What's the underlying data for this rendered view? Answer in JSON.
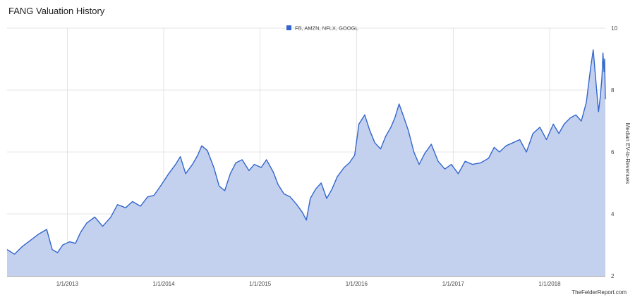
{
  "chart_data": {
    "type": "area",
    "title": "FANG Valuation History",
    "ylabel": "Median EV-to-Revenues",
    "xlabel": "",
    "ylim": [
      2,
      10
    ],
    "yticks": [
      "2",
      "4",
      "6",
      "8",
      "10"
    ],
    "xticks": [
      "1/1/2013",
      "1/1/2014",
      "1/1/2015",
      "1/1/2016",
      "1/1/2017",
      "1/1/2018"
    ],
    "x_axis": "dates",
    "x_range": [
      "2012-05-18",
      "2018-07-31"
    ],
    "grid": true,
    "legend_position": "top-center",
    "series": [
      {
        "name": "FB, AMZN, NFLX, GOOGL",
        "color": "#3366cc",
        "fill": "#c3d1ef",
        "points": [
          [
            "2012-05-18",
            2.85
          ],
          [
            "2012-06-15",
            2.7
          ],
          [
            "2012-07-15",
            2.95
          ],
          [
            "2012-08-15",
            3.15
          ],
          [
            "2012-09-15",
            3.35
          ],
          [
            "2012-10-15",
            3.5
          ],
          [
            "2012-11-05",
            2.85
          ],
          [
            "2012-11-25",
            2.75
          ],
          [
            "2012-12-15",
            3.0
          ],
          [
            "2013-01-10",
            3.1
          ],
          [
            "2013-02-01",
            3.05
          ],
          [
            "2013-02-20",
            3.4
          ],
          [
            "2013-03-15",
            3.7
          ],
          [
            "2013-04-15",
            3.9
          ],
          [
            "2013-05-15",
            3.6
          ],
          [
            "2013-06-15",
            3.9
          ],
          [
            "2013-07-10",
            4.3
          ],
          [
            "2013-08-10",
            4.2
          ],
          [
            "2013-09-05",
            4.4
          ],
          [
            "2013-10-05",
            4.25
          ],
          [
            "2013-11-01",
            4.55
          ],
          [
            "2013-11-25",
            4.6
          ],
          [
            "2013-12-20",
            4.9
          ],
          [
            "2014-01-20",
            5.3
          ],
          [
            "2014-02-15",
            5.6
          ],
          [
            "2014-03-05",
            5.85
          ],
          [
            "2014-03-25",
            5.3
          ],
          [
            "2014-04-20",
            5.6
          ],
          [
            "2014-05-10",
            5.9
          ],
          [
            "2014-05-25",
            6.2
          ],
          [
            "2014-06-15",
            6.05
          ],
          [
            "2014-07-10",
            5.5
          ],
          [
            "2014-07-30",
            4.9
          ],
          [
            "2014-08-20",
            4.75
          ],
          [
            "2014-09-10",
            5.3
          ],
          [
            "2014-10-01",
            5.65
          ],
          [
            "2014-10-25",
            5.75
          ],
          [
            "2014-11-20",
            5.4
          ],
          [
            "2014-12-10",
            5.6
          ],
          [
            "2015-01-05",
            5.5
          ],
          [
            "2015-01-25",
            5.75
          ],
          [
            "2015-02-20",
            5.35
          ],
          [
            "2015-03-10",
            4.95
          ],
          [
            "2015-04-01",
            4.65
          ],
          [
            "2015-04-25",
            4.55
          ],
          [
            "2015-05-20",
            4.3
          ],
          [
            "2015-06-10",
            4.05
          ],
          [
            "2015-06-25",
            3.8
          ],
          [
            "2015-07-10",
            4.5
          ],
          [
            "2015-07-30",
            4.8
          ],
          [
            "2015-08-20",
            5.0
          ],
          [
            "2015-09-10",
            4.5
          ],
          [
            "2015-09-30",
            4.8
          ],
          [
            "2015-10-20",
            5.2
          ],
          [
            "2015-11-15",
            5.5
          ],
          [
            "2015-12-05",
            5.65
          ],
          [
            "2015-12-25",
            5.9
          ],
          [
            "2016-01-10",
            6.9
          ],
          [
            "2016-02-01",
            7.2
          ],
          [
            "2016-02-20",
            6.7
          ],
          [
            "2016-03-10",
            6.3
          ],
          [
            "2016-04-01",
            6.1
          ],
          [
            "2016-04-20",
            6.5
          ],
          [
            "2016-05-10",
            6.8
          ],
          [
            "2016-05-25",
            7.1
          ],
          [
            "2016-06-10",
            7.55
          ],
          [
            "2016-06-25",
            7.2
          ],
          [
            "2016-07-15",
            6.7
          ],
          [
            "2016-08-05",
            6.0
          ],
          [
            "2016-08-25",
            5.6
          ],
          [
            "2016-09-15",
            5.95
          ],
          [
            "2016-10-10",
            6.25
          ],
          [
            "2016-11-05",
            5.7
          ],
          [
            "2016-11-30",
            5.45
          ],
          [
            "2016-12-25",
            5.6
          ],
          [
            "2017-01-20",
            5.3
          ],
          [
            "2017-02-15",
            5.7
          ],
          [
            "2017-03-15",
            5.6
          ],
          [
            "2017-04-15",
            5.65
          ],
          [
            "2017-05-15",
            5.8
          ],
          [
            "2017-06-05",
            6.15
          ],
          [
            "2017-06-25",
            6.0
          ],
          [
            "2017-07-20",
            6.2
          ],
          [
            "2017-08-15",
            6.3
          ],
          [
            "2017-09-10",
            6.4
          ],
          [
            "2017-10-05",
            6.0
          ],
          [
            "2017-10-30",
            6.6
          ],
          [
            "2017-11-25",
            6.8
          ],
          [
            "2017-12-20",
            6.4
          ],
          [
            "2018-01-15",
            6.9
          ],
          [
            "2018-02-05",
            6.6
          ],
          [
            "2018-02-25",
            6.9
          ],
          [
            "2018-03-20",
            7.1
          ],
          [
            "2018-04-10",
            7.2
          ],
          [
            "2018-05-01",
            7.0
          ],
          [
            "2018-05-20",
            7.6
          ],
          [
            "2018-06-05",
            8.7
          ],
          [
            "2018-06-15",
            9.3
          ],
          [
            "2018-06-25",
            8.3
          ],
          [
            "2018-07-05",
            7.3
          ],
          [
            "2018-07-12",
            7.8
          ],
          [
            "2018-07-18",
            8.4
          ],
          [
            "2018-07-22",
            9.2
          ],
          [
            "2018-07-26",
            8.6
          ],
          [
            "2018-07-28",
            9.0
          ],
          [
            "2018-07-31",
            7.7
          ]
        ]
      }
    ]
  },
  "credit": "TheFelderReport.com"
}
